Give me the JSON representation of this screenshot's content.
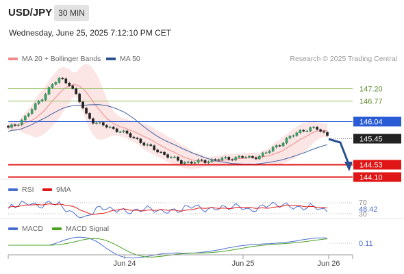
{
  "header": {
    "symbol": "USD/JPY",
    "timeframe": "30 MIN",
    "datetime": "Wednesday, June 25, 2025 7:12:10 PM CET"
  },
  "legend": {
    "ma20": "MA 20 + Bollinger Bands",
    "ma50": "MA 50",
    "ma20_color": "#f08a8a",
    "ma50_color": "#3a5fa0",
    "credit": "Research © 2025 Trading Central"
  },
  "levels": [
    {
      "value": "147.20",
      "color": "#8dbb55",
      "style": "text"
    },
    {
      "value": "146.77",
      "color": "#8dbb55",
      "style": "text"
    },
    {
      "value": "146.04",
      "color": "#2a5bd7",
      "style": "box"
    },
    {
      "value": "145.45",
      "color": "#222222",
      "style": "box"
    },
    {
      "value": "144.53",
      "color": "#e01515",
      "style": "box"
    },
    {
      "value": "144.10",
      "color": "#e01515",
      "style": "box"
    }
  ],
  "rsi": {
    "label": "RSI",
    "ma_label": "9MA",
    "rsi_color": "#4a6ed0",
    "ma_color": "#e01515",
    "levels": [
      "70",
      "30"
    ],
    "current": "48.42"
  },
  "macd": {
    "label": "MACD",
    "signal_label": "MACD Signal",
    "macd_color": "#4a6ed0",
    "signal_color": "#4aa020",
    "current": "0.11"
  },
  "x_axis": {
    "ticks": [
      "Jun 24",
      "Jun 25",
      "Jun 26"
    ]
  },
  "chart_data": {
    "type": "line",
    "title": "USD/JPY",
    "xlabel": "",
    "ylabel": "",
    "ylim": [
      144.0,
      147.9
    ],
    "x": [
      "Jun 24",
      "Jun 25",
      "Jun 26"
    ],
    "series": [
      {
        "name": "MA 20 + Bollinger Bands"
      },
      {
        "name": "MA 50"
      }
    ],
    "price_path": [
      145.8,
      145.95,
      146.2,
      146.55,
      146.9,
      147.3,
      147.55,
      147.4,
      146.9,
      146.3,
      146.0,
      145.9,
      145.8,
      145.7,
      145.55,
      145.4,
      145.2,
      145.05,
      144.9,
      144.75,
      144.62,
      144.6,
      144.62,
      144.65,
      144.7,
      144.72,
      144.75,
      144.8,
      144.75,
      144.82,
      144.95,
      145.15,
      145.35,
      145.55,
      145.72,
      145.8,
      145.75,
      145.55
    ]
  }
}
